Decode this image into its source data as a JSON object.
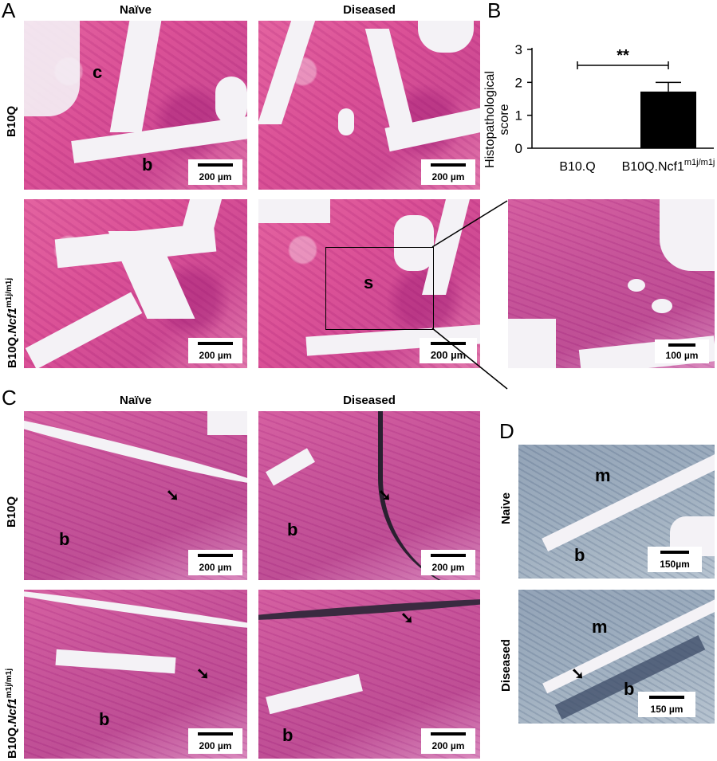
{
  "panels": {
    "A": "A",
    "B": "B",
    "C": "C",
    "D": "D"
  },
  "columns": {
    "naive": "Naïve",
    "diseased": "Diseased"
  },
  "rows": {
    "b10q": "B10Q",
    "ncf1_prefix": "B10Q.",
    "ncf1_gene": "Ncf1",
    "ncf1_sup": "m1j/m1j"
  },
  "d_rows": {
    "naive": "Naive",
    "diseased": "Diseased"
  },
  "labels": {
    "c": "c",
    "b": "b",
    "s": "s",
    "m": "m",
    "arrow": "➘"
  },
  "scales": {
    "s200": "200 µm",
    "s100": "100 µm",
    "s150": "150µm",
    "s150b": "150 µm"
  },
  "colors": {
    "he_pink": "#d84d94",
    "tb_blue": "#98a9bb",
    "bar": "#000000"
  },
  "chart_data": {
    "type": "bar",
    "categories": [
      "B10.Q",
      "B10Q.Ncf1m1j/m1j"
    ],
    "category_base": [
      "B10.Q",
      "B10Q.Ncf1"
    ],
    "category_sup": [
      "",
      "m1j/m1j"
    ],
    "values": [
      0,
      1.72
    ],
    "error": [
      0,
      0.28
    ],
    "ylabel": "Histopathological score",
    "ylabel_lines": [
      "Histopathological",
      "score"
    ],
    "ylim": [
      0,
      3
    ],
    "yticks": [
      "0",
      "1",
      "2",
      "3"
    ],
    "significance": "**",
    "grid": false
  }
}
